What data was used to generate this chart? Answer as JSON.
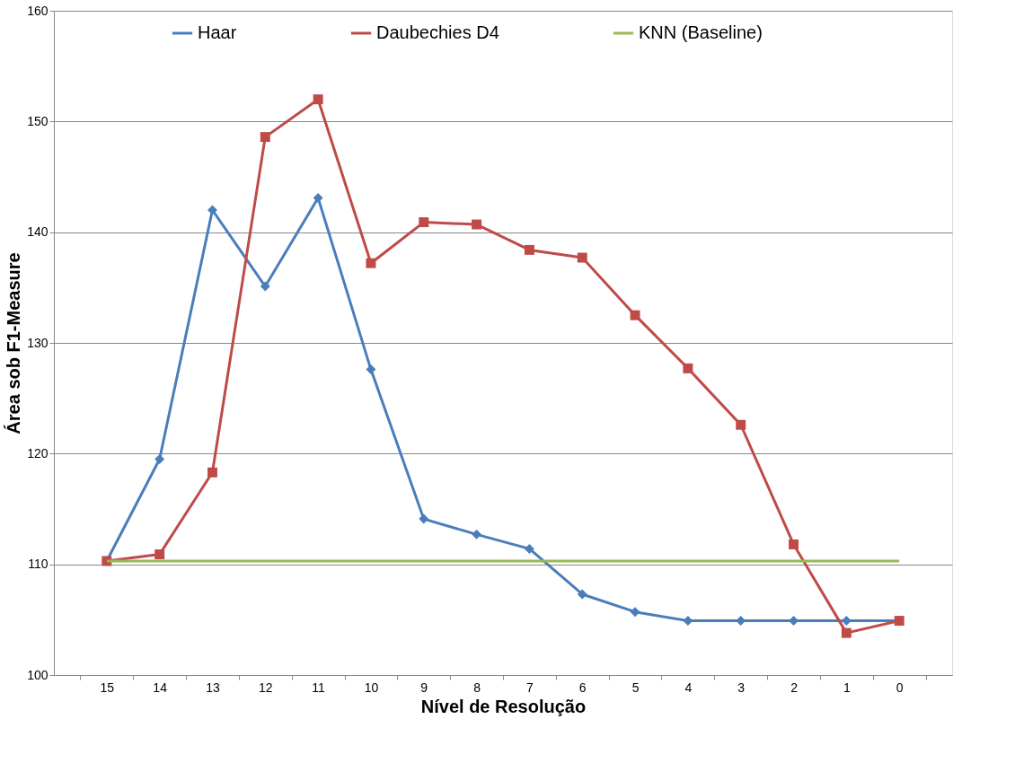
{
  "chart_data": {
    "type": "line",
    "xlabel": "Nível de Resolução",
    "ylabel": "Área sob F1-Measure",
    "categories": [
      "15",
      "14",
      "13",
      "12",
      "11",
      "10",
      "9",
      "8",
      "7",
      "6",
      "5",
      "4",
      "3",
      "2",
      "1",
      "0"
    ],
    "series": [
      {
        "name": "Haar",
        "color": "#4a7ebb",
        "marker": "diamond",
        "values": [
          110.3,
          119.5,
          142.0,
          135.1,
          143.1,
          127.6,
          114.1,
          112.7,
          111.4,
          107.3,
          105.7,
          104.9,
          104.9,
          104.9,
          104.9,
          104.9
        ]
      },
      {
        "name": "Daubechies D4",
        "color": "#be4b48",
        "marker": "square",
        "values": [
          110.3,
          110.9,
          118.3,
          148.6,
          152.0,
          137.2,
          140.9,
          140.7,
          138.4,
          137.7,
          132.5,
          127.7,
          122.6,
          111.8,
          103.8,
          104.9
        ]
      },
      {
        "name": "KNN (Baseline)",
        "color": "#98b954",
        "marker": "none",
        "values": [
          110.3,
          110.3,
          110.3,
          110.3,
          110.3,
          110.3,
          110.3,
          110.3,
          110.3,
          110.3,
          110.3,
          110.3,
          110.3,
          110.3,
          110.3,
          110.3
        ]
      }
    ],
    "ylim": [
      100,
      160
    ],
    "yticks": [
      100,
      110,
      120,
      130,
      140,
      150,
      160
    ],
    "grid": "y",
    "legend": "top",
    "line_style": "solid"
  }
}
